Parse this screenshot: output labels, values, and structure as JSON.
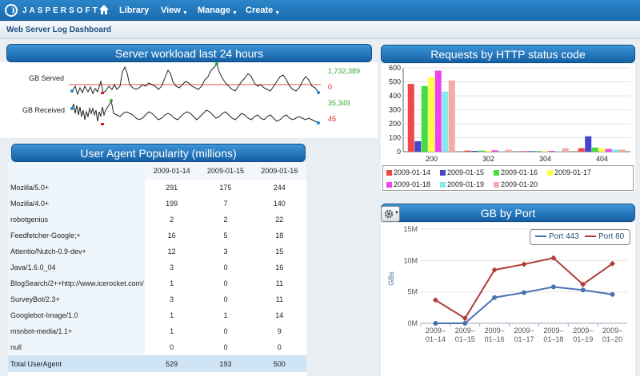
{
  "app": {
    "logo_text": "JASPERSOFT",
    "menu": [
      {
        "label": "Library"
      },
      {
        "label": "View"
      },
      {
        "label": "Manage"
      },
      {
        "label": "Create"
      }
    ]
  },
  "dashboard": {
    "title": "Web Server Log Dashboard"
  },
  "workload": {
    "title": "Server workload last 24 hours",
    "rows": [
      {
        "label": "GB Served",
        "max_value": "1,732,389",
        "min_value": "0"
      },
      {
        "label": "GB Received",
        "max_value": "35,349",
        "min_value": "45"
      }
    ],
    "colors": {
      "max": "#33aa33",
      "min": "#dd2222",
      "line": "#222222",
      "band": "#e05050"
    }
  },
  "user_agents": {
    "title": "User Agent Popularity (millions)",
    "columns": [
      "2009-01-14",
      "2009-01-15",
      "2009-01-16"
    ],
    "rows": [
      {
        "agent": "Mozilla/5.0+",
        "values": [
          "291",
          "175",
          "244"
        ]
      },
      {
        "agent": "Mozilla/4.0+",
        "values": [
          "199",
          "7",
          "140"
        ]
      },
      {
        "agent": "robotgenius",
        "values": [
          "2",
          "2",
          "22"
        ]
      },
      {
        "agent": "Feedfetcher-Google;+",
        "values": [
          "16",
          "5",
          "18"
        ]
      },
      {
        "agent": "Attentio/Nutch-0.9-dev+",
        "values": [
          "12",
          "3",
          "15"
        ]
      },
      {
        "agent": "Java/1.6.0_04",
        "values": [
          "3",
          "0",
          "16"
        ]
      },
      {
        "agent": "BlogSearch/2++http://www.icerocket.com/",
        "values": [
          "1",
          "0",
          "11"
        ]
      },
      {
        "agent": "SurveyBot/2.3+",
        "values": [
          "3",
          "0",
          "11"
        ]
      },
      {
        "agent": "Googlebot-Image/1.0",
        "values": [
          "1",
          "1",
          "14"
        ]
      },
      {
        "agent": "msnbot-media/1.1+",
        "values": [
          "1",
          "0",
          "9"
        ]
      },
      {
        "agent": "null",
        "values": [
          "0",
          "0",
          "0"
        ]
      }
    ],
    "total": {
      "agent": "Total UserAgent",
      "values": [
        "529",
        "193",
        "500"
      ]
    }
  },
  "status_chart": {
    "title": "Requests by HTTP status code"
  },
  "port_chart": {
    "title": "GB by Port",
    "ylabel": "GBs"
  },
  "chart_data": [
    {
      "type": "bar",
      "title": "Requests by HTTP status code",
      "categories": [
        "200",
        "302",
        "304",
        "404"
      ],
      "ylim": [
        0,
        600
      ],
      "yticks": [
        "0",
        "100",
        "200",
        "300",
        "400",
        "500",
        "600"
      ],
      "grid": true,
      "legend": "bottom",
      "series": [
        {
          "name": "2009-01-14",
          "color": "#f0474a",
          "values": [
            485,
            8,
            4,
            25
          ]
        },
        {
          "name": "2009-01-15",
          "color": "#4444cc",
          "values": [
            75,
            6,
            4,
            110
          ]
        },
        {
          "name": "2009-01-16",
          "color": "#44dd44",
          "values": [
            470,
            8,
            5,
            30
          ]
        },
        {
          "name": "2009-01-17",
          "color": "#ffff44",
          "values": [
            535,
            7,
            4,
            25
          ]
        },
        {
          "name": "2009-01-18",
          "color": "#ee44ee",
          "values": [
            580,
            10,
            6,
            20
          ]
        },
        {
          "name": "2009-01-19",
          "color": "#88e8f0",
          "values": [
            430,
            5,
            4,
            15
          ]
        },
        {
          "name": "2009-01-20",
          "color": "#f5aaaa",
          "values": [
            510,
            15,
            25,
            15
          ]
        }
      ]
    },
    {
      "type": "line",
      "title": "GB by Port",
      "ylabel": "GBs",
      "x": [
        "2009–01–14",
        "2009–01–15",
        "2009–01–16",
        "2009–01–17",
        "2009–01–18",
        "2009–01–19",
        "2009–01–20"
      ],
      "ylim": [
        0,
        15
      ],
      "yticks": [
        "0M",
        "5M",
        "10M",
        "15M"
      ],
      "legend": "top-right",
      "series": [
        {
          "name": "Port 443",
          "color": "#4a72b0",
          "values": [
            0,
            0,
            4.1,
            4.9,
            5.8,
            5.3,
            4.6
          ]
        },
        {
          "name": "Port 80",
          "color": "#b03a3a",
          "values": [
            3.7,
            0.8,
            8.5,
            9.4,
            10.4,
            6.2,
            9.5
          ]
        }
      ]
    }
  ]
}
